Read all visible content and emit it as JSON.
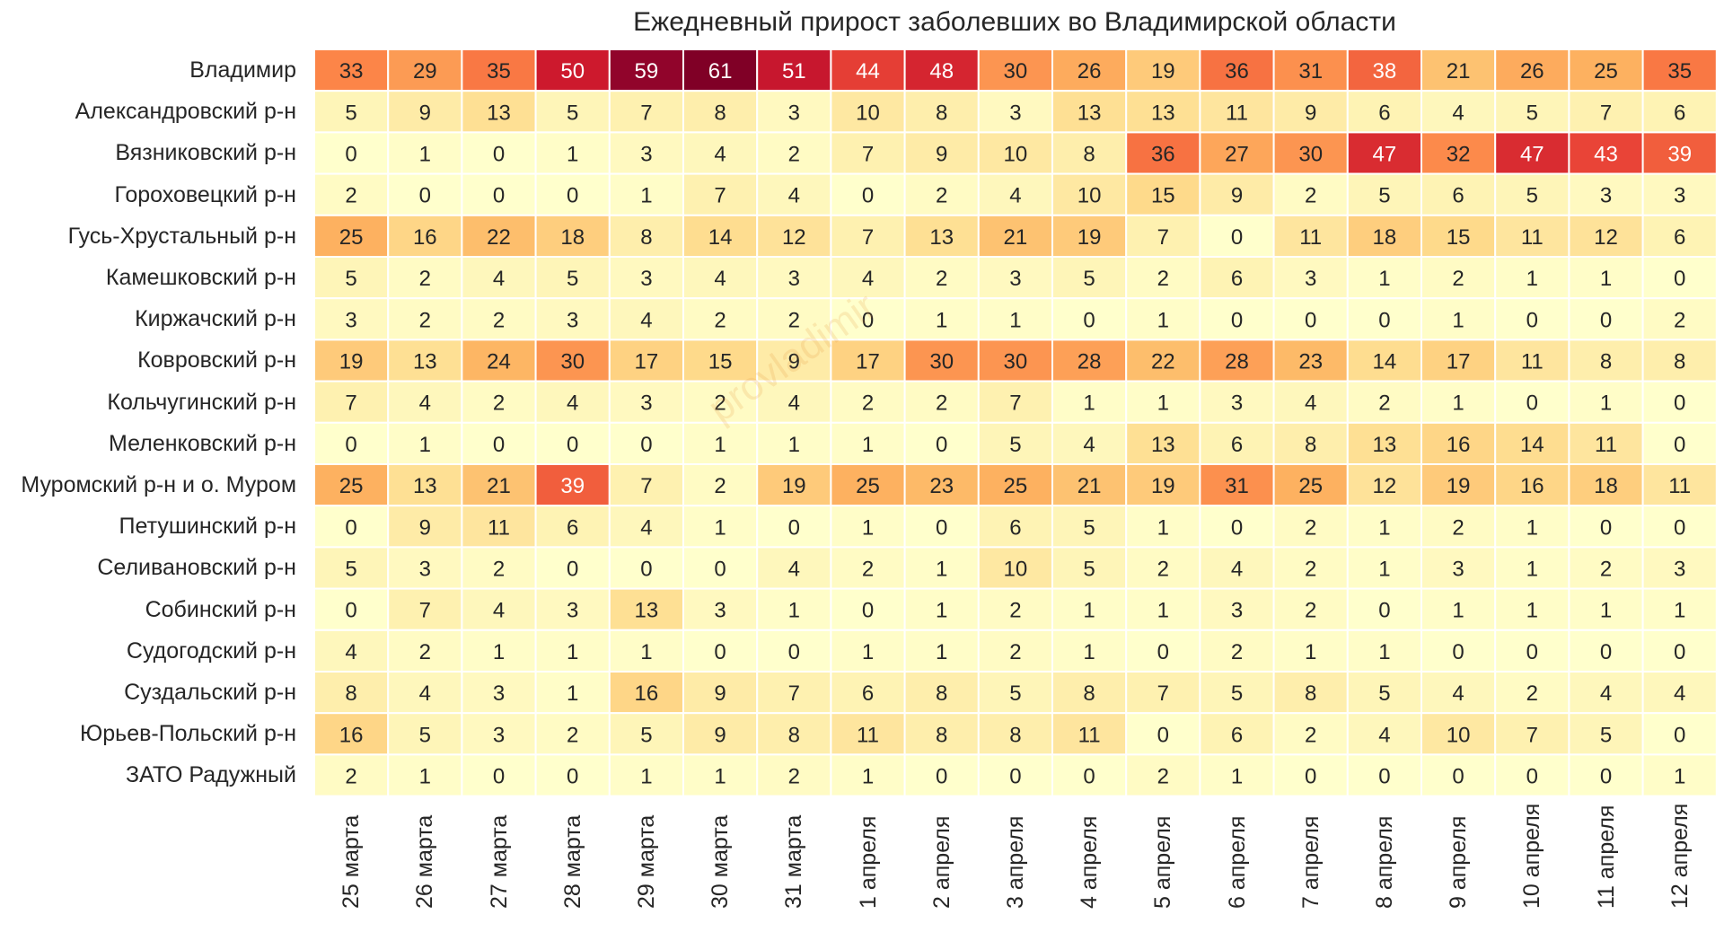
{
  "chart_data": {
    "type": "heatmap",
    "title": "Ежедневный прирост заболевших во Владимирской области",
    "colormap": "YlOrRd-like",
    "vmin": 0,
    "vmax": 61,
    "columns": [
      "25 марта",
      "26 марта",
      "27 марта",
      "28 марта",
      "29 марта",
      "30 марта",
      "31 марта",
      "1 апреля",
      "2 апреля",
      "3 апреля",
      "4 апреля",
      "5 апреля",
      "6 апреля",
      "7 апреля",
      "8 апреля",
      "9 апреля",
      "10 апреля",
      "11 апреля",
      "12 апреля"
    ],
    "rows": [
      "Владимир",
      "Александровский р-н",
      "Вязниковский р-н",
      "Гороховецкий р-н",
      "Гусь-Хрустальный р-н",
      "Камешковский р-н",
      "Киржачский р-н",
      "Ковровский р-н",
      "Кольчугинский р-н",
      "Меленковский р-н",
      "Муромский р-н и о. Муром",
      "Петушинский р-н",
      "Селивановский р-н",
      "Собинский р-н",
      "Судогодский р-н",
      "Суздальский р-н",
      "Юрьев-Польский р-н",
      "ЗАТО Радужный"
    ],
    "values": [
      [
        33,
        29,
        35,
        50,
        59,
        61,
        51,
        44,
        48,
        30,
        26,
        19,
        36,
        31,
        38,
        21,
        26,
        25,
        35
      ],
      [
        5,
        9,
        13,
        5,
        7,
        8,
        3,
        10,
        8,
        3,
        13,
        13,
        11,
        9,
        6,
        4,
        5,
        7,
        6
      ],
      [
        0,
        1,
        0,
        1,
        3,
        4,
        2,
        7,
        9,
        10,
        8,
        36,
        27,
        30,
        47,
        32,
        47,
        43,
        39
      ],
      [
        2,
        0,
        0,
        0,
        1,
        7,
        4,
        0,
        2,
        4,
        10,
        15,
        9,
        2,
        5,
        6,
        5,
        3,
        3
      ],
      [
        25,
        16,
        22,
        18,
        8,
        14,
        12,
        7,
        13,
        21,
        19,
        7,
        0,
        11,
        18,
        15,
        11,
        12,
        6
      ],
      [
        5,
        2,
        4,
        5,
        3,
        4,
        3,
        4,
        2,
        3,
        5,
        2,
        6,
        3,
        1,
        2,
        1,
        1,
        0
      ],
      [
        3,
        2,
        2,
        3,
        4,
        2,
        2,
        0,
        1,
        1,
        0,
        1,
        0,
        0,
        0,
        1,
        0,
        0,
        2
      ],
      [
        19,
        13,
        24,
        30,
        17,
        15,
        9,
        17,
        30,
        30,
        28,
        22,
        28,
        23,
        14,
        17,
        11,
        8,
        8
      ],
      [
        7,
        4,
        2,
        4,
        3,
        2,
        4,
        2,
        2,
        7,
        1,
        1,
        3,
        4,
        2,
        1,
        0,
        1,
        0
      ],
      [
        0,
        1,
        0,
        0,
        0,
        1,
        1,
        1,
        0,
        5,
        4,
        13,
        6,
        8,
        13,
        16,
        14,
        11,
        0
      ],
      [
        25,
        13,
        21,
        39,
        7,
        2,
        19,
        25,
        23,
        25,
        21,
        19,
        31,
        25,
        12,
        19,
        16,
        18,
        11
      ],
      [
        0,
        9,
        11,
        6,
        4,
        1,
        0,
        1,
        0,
        6,
        5,
        1,
        0,
        2,
        1,
        2,
        1,
        0,
        0
      ],
      [
        5,
        3,
        2,
        0,
        0,
        0,
        4,
        2,
        1,
        10,
        5,
        2,
        4,
        2,
        1,
        3,
        1,
        2,
        3
      ],
      [
        0,
        7,
        4,
        3,
        13,
        3,
        1,
        0,
        1,
        2,
        1,
        1,
        3,
        2,
        0,
        1,
        1,
        1,
        1
      ],
      [
        4,
        2,
        1,
        1,
        1,
        0,
        0,
        1,
        1,
        2,
        1,
        0,
        2,
        1,
        1,
        0,
        0,
        0,
        0
      ],
      [
        8,
        4,
        3,
        1,
        16,
        9,
        7,
        6,
        8,
        5,
        8,
        7,
        5,
        8,
        5,
        4,
        2,
        4,
        4
      ],
      [
        16,
        5,
        3,
        2,
        5,
        9,
        8,
        11,
        8,
        8,
        11,
        0,
        6,
        2,
        4,
        10,
        7,
        5,
        0
      ],
      [
        2,
        1,
        0,
        0,
        1,
        1,
        2,
        1,
        0,
        0,
        0,
        2,
        1,
        0,
        0,
        0,
        0,
        0,
        1
      ]
    ]
  },
  "watermark_text": "provladimir"
}
